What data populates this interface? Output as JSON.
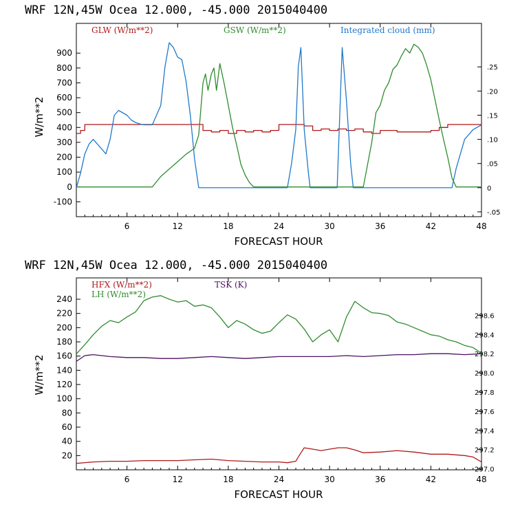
{
  "charts": [
    {
      "header": "WRF  12N,45W Ocea  12.000, -45.000  2015040400",
      "xlabel": "FORECAST HOUR",
      "ylabel": "W/m**2",
      "xlim": [
        0,
        48
      ],
      "ylim": [
        -200,
        1100
      ],
      "x_ticks": [
        6,
        12,
        18,
        24,
        30,
        36,
        42,
        48
      ],
      "y_ticks": [
        -100,
        0,
        100,
        200,
        300,
        400,
        500,
        600,
        700,
        800,
        900
      ],
      "right_ylim": [
        -0.06,
        0.34
      ],
      "right_ticks": [
        -0.05,
        0,
        0.05,
        0.1,
        0.15,
        0.2,
        0.25
      ],
      "right_tick_labels": [
        "-.05",
        "0",
        ".05",
        ".10",
        ".15",
        ".20",
        ".25"
      ],
      "legend": [
        {
          "label": "GLW (W/m**2)",
          "color": "#b01818"
        },
        {
          "label": "GSW (W/m**2)",
          "color": "#2e8b2e"
        },
        {
          "label": "Integrated cloud (mm)",
          "color": "#1f78c8"
        }
      ]
    },
    {
      "header": "WRF  12N,45W Ocea  12.000, -45.000  2015040400",
      "xlabel": "FORECAST HOUR",
      "ylabel": "W/m**2",
      "xlim": [
        0,
        48
      ],
      "ylim": [
        0,
        270
      ],
      "x_ticks": [
        6,
        12,
        18,
        24,
        30,
        36,
        42,
        48
      ],
      "y_ticks": [
        20,
        40,
        60,
        80,
        100,
        120,
        140,
        160,
        180,
        200,
        220,
        240
      ],
      "right_ylim": [
        296.99,
        298.99
      ],
      "right_ticks": [
        297.0,
        297.2,
        297.4,
        297.6,
        297.8,
        298.0,
        298.2,
        298.4,
        298.6
      ],
      "right_tick_labels": [
        "297.0",
        "297.2",
        "297.4",
        "297.6",
        "297.8",
        "298.0",
        "298.2",
        "298.4",
        "298.6"
      ],
      "legend": [
        {
          "label": "HFX (W/m**2)",
          "color": "#b01818"
        },
        {
          "label": "LH  (W/m**2)",
          "color": "#2e8b2e"
        },
        {
          "label": "TSK (K)",
          "color": "#4b1060"
        }
      ]
    }
  ],
  "chart_data": [
    {
      "type": "line",
      "x_unit": "forecast hour",
      "series": [
        {
          "name": "GLW (W/m**2)",
          "axis": "left",
          "step": true,
          "x": [
            0,
            0.5,
            1,
            14,
            15,
            16,
            17,
            18,
            19,
            20,
            21,
            22,
            23,
            24,
            26,
            27,
            28,
            29,
            30,
            31,
            32,
            33,
            34,
            35,
            36,
            38,
            40,
            42,
            43,
            44,
            48
          ],
          "y": [
            360,
            380,
            420,
            420,
            380,
            370,
            380,
            360,
            380,
            370,
            380,
            370,
            380,
            420,
            420,
            410,
            380,
            390,
            380,
            390,
            380,
            390,
            370,
            360,
            380,
            370,
            370,
            380,
            400,
            420,
            420
          ]
        },
        {
          "name": "GSW (W/m**2)",
          "axis": "left",
          "step": false,
          "x": [
            0,
            9,
            10,
            11,
            12,
            13,
            14,
            14.5,
            15,
            15.3,
            15.6,
            16,
            16.3,
            16.6,
            17,
            17.5,
            18,
            18.5,
            19,
            19.5,
            20,
            20.5,
            21,
            31,
            34,
            35,
            35.5,
            36,
            36.5,
            37,
            37.5,
            38,
            38.5,
            39,
            39.5,
            40,
            40.5,
            41,
            41.5,
            42,
            43,
            43.5,
            44,
            44.5,
            45,
            48
          ],
          "y": [
            0,
            0,
            70,
            120,
            170,
            220,
            260,
            350,
            700,
            760,
            650,
            760,
            800,
            650,
            830,
            700,
            550,
            400,
            280,
            150,
            80,
            30,
            0,
            0,
            0,
            300,
            500,
            550,
            650,
            700,
            790,
            820,
            880,
            930,
            900,
            960,
            940,
            900,
            820,
            720,
            450,
            320,
            200,
            60,
            0,
            0
          ]
        },
        {
          "name": "Integrated cloud (mm)",
          "axis": "right",
          "step": false,
          "x": [
            0,
            0.5,
            1,
            1.5,
            2,
            2.5,
            3,
            3.5,
            4,
            4.5,
            5,
            5.5,
            6,
            6.5,
            7,
            7.5,
            8,
            9,
            10,
            10.5,
            11,
            11.5,
            12,
            12.5,
            13,
            13.5,
            14,
            14.5,
            25,
            25.5,
            26,
            26.3,
            26.6,
            27,
            27.5,
            27.7,
            30.9,
            31,
            31.5,
            32,
            32.5,
            32.8,
            44.5,
            45,
            46,
            47,
            48
          ],
          "y": [
            0,
            0.03,
            0.07,
            0.09,
            0.1,
            0.09,
            0.08,
            0.07,
            0.1,
            0.15,
            0.16,
            0.155,
            0.15,
            0.14,
            0.135,
            0.132,
            0.13,
            0.13,
            0.17,
            0.25,
            0.3,
            0.29,
            0.27,
            0.265,
            0.22,
            0.15,
            0.06,
            0,
            0,
            0.05,
            0.12,
            0.25,
            0.29,
            0.12,
            0.03,
            0,
            0,
            0.05,
            0.29,
            0.18,
            0.05,
            0,
            0,
            0.04,
            0.1,
            0.12,
            0.13
          ]
        }
      ]
    },
    {
      "type": "line",
      "x_unit": "forecast hour",
      "series": [
        {
          "name": "HFX (W/m**2)",
          "axis": "left",
          "step": false,
          "x": [
            0,
            2,
            4,
            6,
            8,
            10,
            12,
            14,
            16,
            18,
            20,
            22,
            24,
            25,
            26,
            26.5,
            27,
            28,
            29,
            30,
            31,
            32,
            33,
            34,
            36,
            38,
            40,
            42,
            44,
            46,
            47,
            48
          ],
          "y": [
            9,
            11,
            12,
            12,
            13,
            13,
            13,
            14,
            15,
            13,
            12,
            11,
            11,
            10,
            12,
            22,
            31,
            29,
            27,
            29,
            31,
            31,
            28,
            24,
            25,
            27,
            25,
            22,
            22,
            20,
            18,
            11
          ]
        },
        {
          "name": "LH  (W/m**2)",
          "axis": "left",
          "step": false,
          "x": [
            0,
            1,
            2,
            3,
            4,
            5,
            6,
            7,
            8,
            9,
            10,
            11,
            12,
            13,
            14,
            15,
            16,
            17,
            18,
            19,
            20,
            21,
            22,
            23,
            24,
            25,
            26,
            27,
            28,
            29,
            30,
            31,
            32,
            33,
            34,
            35,
            36,
            37,
            38,
            39,
            40,
            41,
            42,
            43,
            44,
            45,
            46,
            47,
            48
          ],
          "y": [
            163,
            176,
            190,
            202,
            210,
            207,
            215,
            222,
            238,
            243,
            245,
            240,
            236,
            238,
            230,
            232,
            228,
            215,
            200,
            210,
            205,
            197,
            192,
            195,
            207,
            218,
            212,
            198,
            180,
            190,
            197,
            180,
            215,
            237,
            228,
            221,
            220,
            217,
            208,
            205,
            200,
            195,
            190,
            188,
            183,
            180,
            175,
            172,
            164
          ]
        },
        {
          "name": "TSK (K)",
          "axis": "right",
          "step": false,
          "x": [
            0,
            1,
            2,
            3,
            4,
            6,
            8,
            10,
            12,
            14,
            16,
            18,
            20,
            22,
            24,
            26,
            28,
            30,
            32,
            34,
            36,
            38,
            40,
            42,
            44,
            46,
            48
          ],
          "y": [
            298.12,
            298.18,
            298.19,
            298.18,
            298.17,
            298.16,
            298.16,
            298.15,
            298.15,
            298.16,
            298.17,
            298.16,
            298.15,
            298.16,
            298.17,
            298.17,
            298.17,
            298.17,
            298.18,
            298.17,
            298.18,
            298.19,
            298.19,
            298.2,
            298.2,
            298.19,
            298.2
          ]
        }
      ]
    }
  ]
}
